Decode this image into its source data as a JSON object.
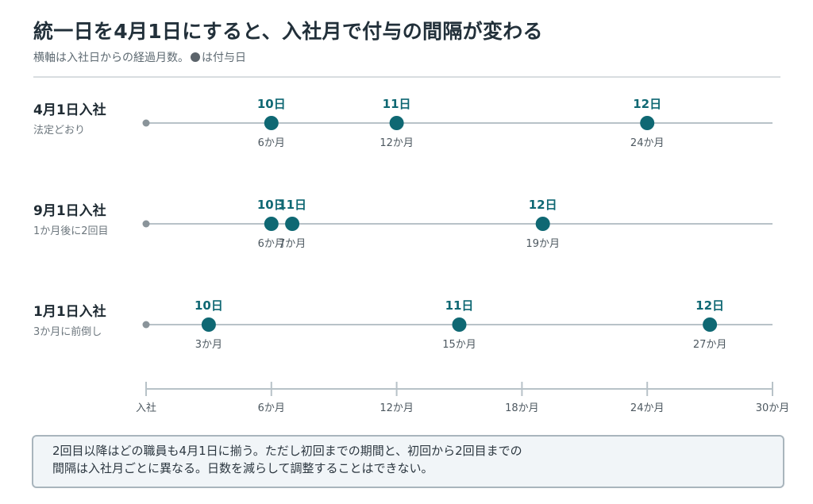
{
  "header": {
    "title": "統一日を4月1日にすると、入社月で付与の間隔が変わる",
    "subtitle_before": "横軸は入社日からの経過月数。",
    "subtitle_after": "は付与日"
  },
  "note": {
    "lines": [
      "2回目以降はどの職員も4月1日に揃う。ただし初回までの期間と、初回から2回目までの",
      "間隔は入社月ごとに異なる。日数を減らして調整することはできない。"
    ]
  },
  "colors": {
    "point": "#0f6873",
    "track": "#b8c2c8",
    "start_dot": "#8a949a",
    "row_label": "#1f2b33",
    "row_sub": "#6d777e",
    "axis": "#b8c2c8",
    "tick_text": "#4d5860"
  },
  "chart_data": {
    "type": "scatter",
    "xlim": [
      0,
      30
    ],
    "x_ticks": [
      0,
      6,
      12,
      18,
      24,
      30
    ],
    "x_tick_labels": [
      "入社",
      "6か月",
      "12か月",
      "18か月",
      "24か月",
      "30か月"
    ],
    "rows": [
      {
        "label": "4月1日入社",
        "sublabel": "法定どおり",
        "points": [
          {
            "x": 6,
            "top_label": "10日",
            "bottom_label": "6か月"
          },
          {
            "x": 12,
            "top_label": "11日",
            "bottom_label": "12か月"
          },
          {
            "x": 24,
            "top_label": "12日",
            "bottom_label": "24か月"
          }
        ]
      },
      {
        "label": "9月1日入社",
        "sublabel": "1か月後に2回目",
        "points": [
          {
            "x": 6,
            "top_label": "10日",
            "bottom_label": "6か月"
          },
          {
            "x": 7,
            "top_label": "11日",
            "bottom_label": "7か月"
          },
          {
            "x": 19,
            "top_label": "12日",
            "bottom_label": "19か月"
          }
        ]
      },
      {
        "label": "1月1日入社",
        "sublabel": "3か月に前倒し",
        "points": [
          {
            "x": 3,
            "top_label": "10日",
            "bottom_label": "3か月"
          },
          {
            "x": 15,
            "top_label": "11日",
            "bottom_label": "15か月"
          },
          {
            "x": 27,
            "top_label": "12日",
            "bottom_label": "27か月"
          }
        ]
      }
    ]
  }
}
